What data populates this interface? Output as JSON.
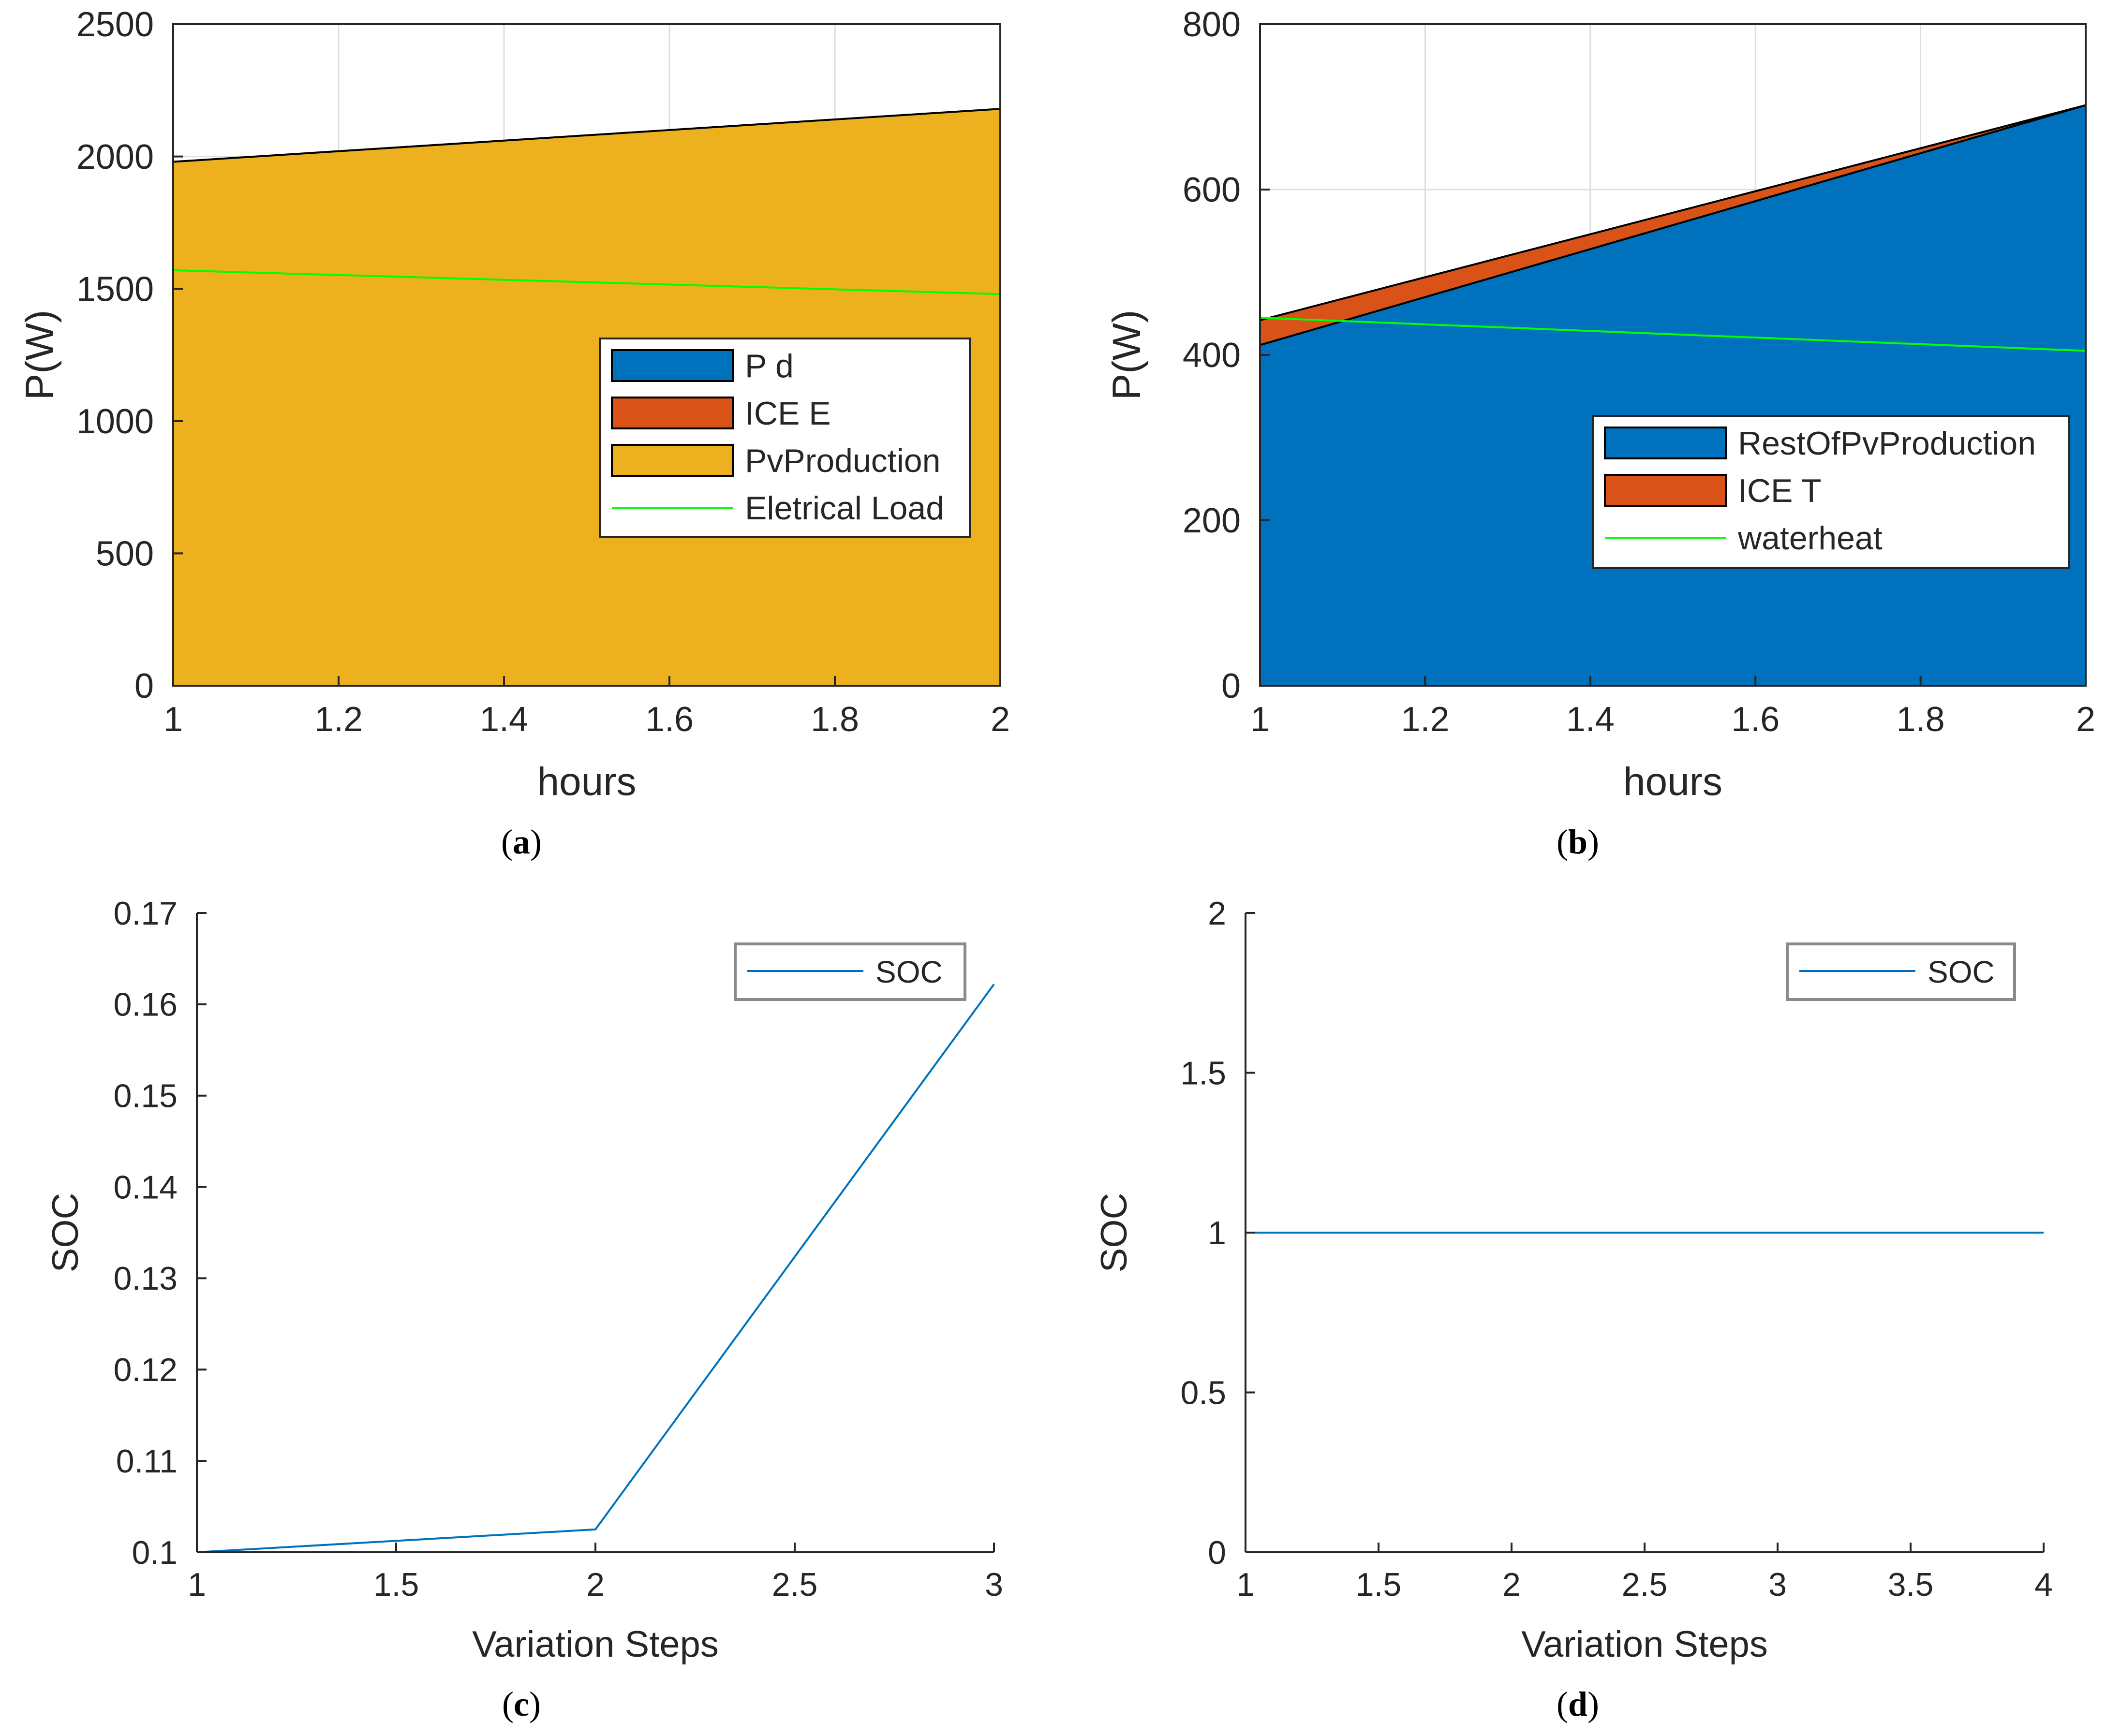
{
  "chart_data": [
    {
      "id": "a",
      "type": "area",
      "caption": "a",
      "xlabel": "hours",
      "ylabel": "P(W)",
      "xlim": [
        1,
        2
      ],
      "ylim": [
        0,
        2500
      ],
      "xticks": [
        1,
        1.2,
        1.4,
        1.6,
        1.8,
        2
      ],
      "yticks": [
        0,
        500,
        1000,
        1500,
        2000,
        2500
      ],
      "grid": true,
      "legend_position": "middle-right",
      "x": [
        1,
        2
      ],
      "series": [
        {
          "name": "P d",
          "kind": "area",
          "color": "#0072bd",
          "values": [
            0,
            0
          ]
        },
        {
          "name": "ICE E",
          "kind": "area",
          "color": "#d95319",
          "values": [
            0,
            0
          ]
        },
        {
          "name": "PvProduction",
          "kind": "area",
          "color": "#edb120",
          "values": [
            1980,
            2180
          ]
        },
        {
          "name": "Eletrical Load",
          "kind": "line",
          "color": "#00ff00",
          "values": [
            1570,
            1480
          ]
        }
      ]
    },
    {
      "id": "b",
      "type": "area",
      "caption": "b",
      "xlabel": "hours",
      "ylabel": "P(W)",
      "xlim": [
        1,
        2
      ],
      "ylim": [
        0,
        800
      ],
      "xticks": [
        1,
        1.2,
        1.4,
        1.6,
        1.8,
        2
      ],
      "yticks": [
        0,
        200,
        400,
        600,
        800
      ],
      "grid": true,
      "legend_position": "bottom-right",
      "x": [
        1,
        2
      ],
      "series": [
        {
          "name": "RestOfPvProduction",
          "kind": "area",
          "color": "#0072bd",
          "values": [
            412,
            702
          ]
        },
        {
          "name": "ICE T",
          "kind": "area",
          "color": "#d95319",
          "values": [
            30,
            0
          ]
        },
        {
          "name": "waterheat",
          "kind": "line",
          "color": "#00ff00",
          "values": [
            445,
            405
          ]
        }
      ]
    },
    {
      "id": "c",
      "type": "line",
      "caption": "c",
      "xlabel": "Variation Steps",
      "ylabel": "SOC",
      "xlim": [
        1,
        3
      ],
      "ylim": [
        0.1,
        0.17
      ],
      "xticks": [
        1,
        1.5,
        2,
        2.5,
        3
      ],
      "yticks": [
        0.1,
        0.11,
        0.12,
        0.13,
        0.14,
        0.15,
        0.16,
        0.17
      ],
      "grid": false,
      "legend_position": "top-right",
      "x": [
        1,
        2,
        3
      ],
      "series": [
        {
          "name": "SOC",
          "kind": "line",
          "color": "#0072bd",
          "values": [
            0.1,
            0.1025,
            0.1622
          ]
        }
      ]
    },
    {
      "id": "d",
      "type": "line",
      "caption": "d",
      "xlabel": "Variation Steps",
      "ylabel": "SOC",
      "xlim": [
        1,
        4
      ],
      "ylim": [
        0,
        2
      ],
      "xticks": [
        1,
        1.5,
        2,
        2.5,
        3,
        3.5,
        4
      ],
      "yticks": [
        0,
        0.5,
        1,
        1.5,
        2
      ],
      "grid": false,
      "legend_position": "top-right",
      "x": [
        1,
        2,
        3,
        4
      ],
      "series": [
        {
          "name": "SOC",
          "kind": "line",
          "color": "#0072bd",
          "values": [
            1,
            1,
            1,
            1
          ]
        }
      ]
    }
  ]
}
